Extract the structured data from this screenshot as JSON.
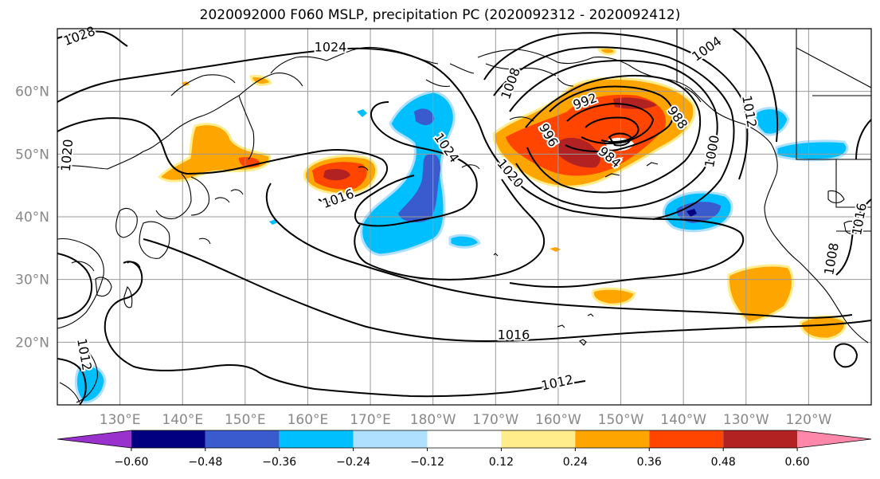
{
  "title": "2020092000 F060 MSLP, precipitation PC (2020092312 - 2020092412)",
  "map": {
    "lon_labels": [
      "130°E",
      "140°E",
      "150°E",
      "160°E",
      "170°E",
      "180°W",
      "170°W",
      "160°W",
      "150°W",
      "140°W",
      "130°W",
      "120°W"
    ],
    "lat_labels": [
      "60°N",
      "50°N",
      "40°N",
      "30°N",
      "20°N"
    ],
    "lon_range": [
      120,
      250
    ],
    "lat_range": [
      10,
      70
    ],
    "grid": true,
    "contour_labels": [
      "1028",
      "1024",
      "1020",
      "1016",
      "1024",
      "1020",
      "1008",
      "1004",
      "992",
      "996",
      "988",
      "984",
      "1000",
      "1012",
      "1016",
      "1012",
      "1016",
      "1008",
      "1012"
    ]
  },
  "colorbar": {
    "colors": [
      "#9932cc",
      "#000080",
      "#3a5bcd",
      "#00bfff",
      "#b0e0ff",
      "#ffffff",
      "#ffec8b",
      "#ffa500",
      "#ff4500",
      "#b22222",
      "#ff88aa"
    ],
    "tick_labels": [
      "−0.60",
      "−0.48",
      "−0.36",
      "−0.24",
      "−0.12",
      "0.12",
      "0.24",
      "0.36",
      "0.48",
      "0.60"
    ]
  },
  "colors": {
    "land_outline": "#000000",
    "contour": "#000000",
    "grid": "#999999",
    "axis_label": "#888888"
  }
}
